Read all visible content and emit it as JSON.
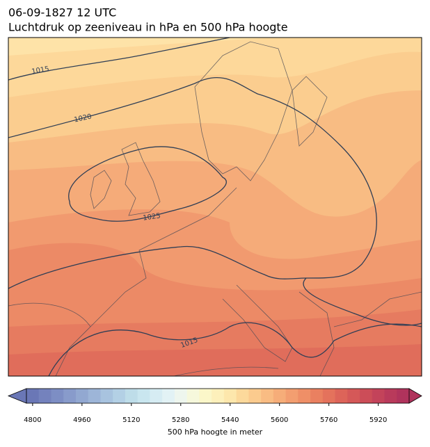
{
  "title": "06-09-1827 12 UTC",
  "subtitle": "Luchtdruk op zeeniveau in hPa en 500 hPa hoogte",
  "contour_labels": [
    1015,
    1020,
    1025,
    1015
  ],
  "colorbar": {
    "label": "500 hPa hoogte in meter",
    "range": [
      4780,
      6020
    ],
    "ticks": [
      4800,
      4960,
      5120,
      5280,
      5440,
      5600,
      5760,
      5920
    ],
    "colors": [
      "#6a77b6",
      "#7482bd",
      "#7d8ec4",
      "#889bcb",
      "#92a8d1",
      "#9db5d8",
      "#a8c3df",
      "#b3d0e5",
      "#bedde9",
      "#c9e6ef",
      "#d6ecf3",
      "#e2f2f5",
      "#eef6ee",
      "#f6f8dc",
      "#fbf7c9",
      "#fdf0bb",
      "#fde7ac",
      "#fcd99b",
      "#fbcb8e",
      "#f9bc83",
      "#f6ad79",
      "#f39e70",
      "#ef8f67",
      "#ea8060",
      "#e4725c",
      "#dd6459",
      "#d55858",
      "#cc4d58",
      "#c3435a",
      "#b93a5b",
      "#b0335c"
    ]
  }
}
